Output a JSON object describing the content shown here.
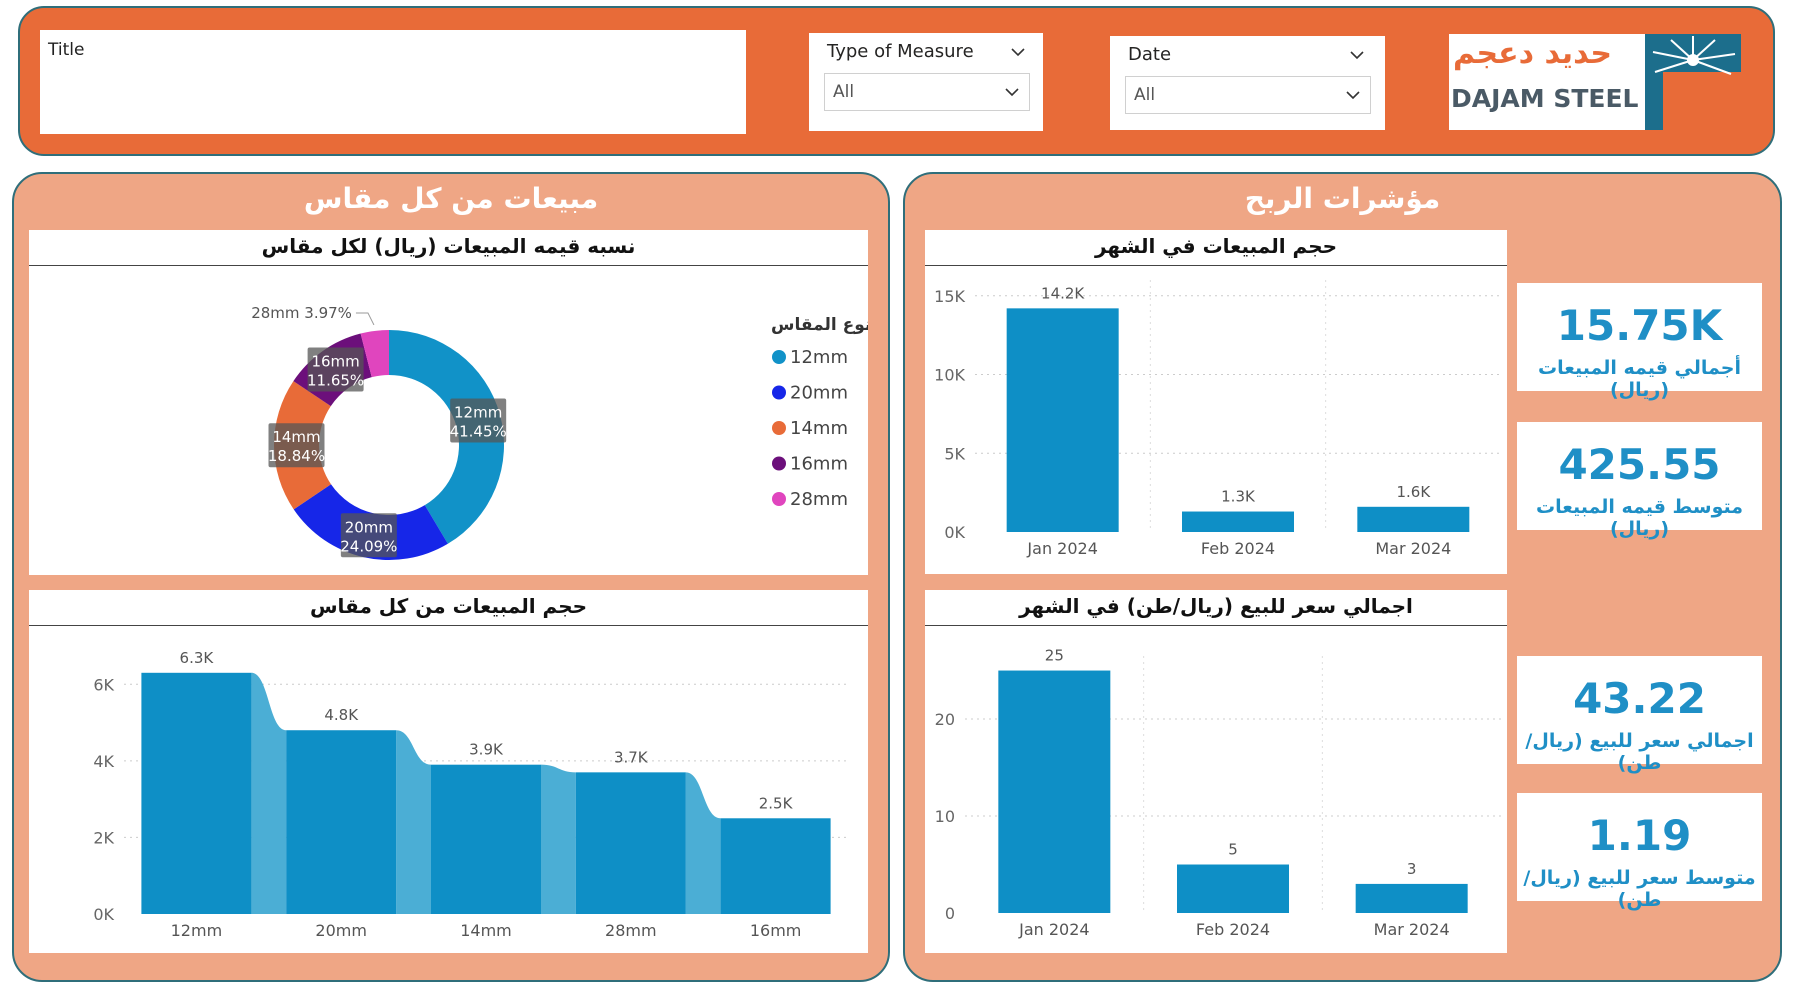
{
  "header": {
    "title_label": "Title",
    "slicer_measure": {
      "label": "Type of Measure",
      "value": "All"
    },
    "slicer_date": {
      "label": "Date",
      "value": "All"
    },
    "logo": {
      "arabic": "حديد دعجم",
      "english": "DAJAM STEEL"
    }
  },
  "colors": {
    "header_bg": "#E86B38",
    "panel_bg": "#EFA685",
    "border": "#2F6E7A",
    "bar": "#0E8FC6",
    "kpi": "#1F8FC6"
  },
  "left_panel": {
    "title": "مبيعات من كل مقاس"
  },
  "right_panel": {
    "title": "مؤشرات الربح"
  },
  "kpis": [
    {
      "value": "15.75K",
      "label": "أجمالي قيمه المبيعات (ريال)"
    },
    {
      "value": "425.55",
      "label": "متوسط قيمه المبيعات (ريال)"
    },
    {
      "value": "43.22",
      "label": "اجمالي سعر للبيع (ريال/طن)"
    },
    {
      "value": "1.19",
      "label": "متوسط سعر للبيع (ريال/طن)"
    }
  ],
  "chart_data": [
    {
      "type": "pie",
      "title": "نسبه قيمه المبيعات (ريال) لكل مقاس",
      "legend_title": "نوع المقاس",
      "legend_position": "right",
      "slices": [
        {
          "name": "12mm",
          "percent": 41.45,
          "label": "41.45%",
          "color": "#1192C8"
        },
        {
          "name": "20mm",
          "percent": 24.09,
          "label": "24.09%",
          "color": "#1626E8"
        },
        {
          "name": "14mm",
          "percent": 18.84,
          "label": "18.84%",
          "color": "#E86B38"
        },
        {
          "name": "16mm",
          "percent": 11.65,
          "label": "11.65%",
          "color": "#6C0F7B"
        },
        {
          "name": "28mm",
          "percent": 3.97,
          "label": "3.97%",
          "color": "#E045BE"
        }
      ]
    },
    {
      "type": "bar",
      "title": "حجم المبيعات من كل مقاس",
      "categories": [
        "12mm",
        "20mm",
        "14mm",
        "28mm",
        "16mm"
      ],
      "values": [
        6300,
        4800,
        3900,
        3700,
        2500
      ],
      "labels": [
        "6.3K",
        "4.8K",
        "3.9K",
        "3.7K",
        "2.5K"
      ],
      "yticks": [
        "0K",
        "2K",
        "4K",
        "6K"
      ],
      "ylim": [
        0,
        7000
      ],
      "grid": true
    },
    {
      "type": "bar",
      "title": "حجم المبيعات في الشهر",
      "categories": [
        "Jan 2024",
        "Feb 2024",
        "Mar 2024"
      ],
      "values": [
        14200,
        1300,
        1600
      ],
      "labels": [
        "14.2K",
        "1.3K",
        "1.6K"
      ],
      "yticks": [
        "0K",
        "5K",
        "10K",
        "15K"
      ],
      "ylim": [
        0,
        16000
      ],
      "grid": true
    },
    {
      "type": "bar",
      "title": "اجمالي سعر للبيع (ريال/طن) في الشهر",
      "categories": [
        "Jan 2024",
        "Feb 2024",
        "Mar 2024"
      ],
      "values": [
        25,
        5,
        3
      ],
      "labels": [
        "25",
        "5",
        "3"
      ],
      "yticks": [
        "0",
        "10",
        "20"
      ],
      "ylim": [
        0,
        26.5
      ],
      "grid": true
    }
  ]
}
